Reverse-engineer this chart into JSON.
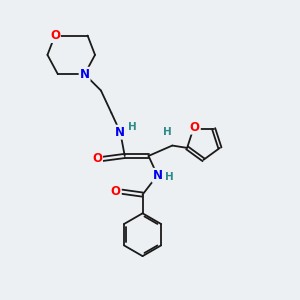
{
  "background_color": "#edf0f2",
  "bond_color": "#1a1a1a",
  "atom_colors": {
    "N": "#0000ee",
    "O": "#ff0000",
    "H": "#2e8b8b",
    "C": "#1a1a1a"
  },
  "figsize": [
    3.0,
    3.0
  ],
  "dpi": 100
}
